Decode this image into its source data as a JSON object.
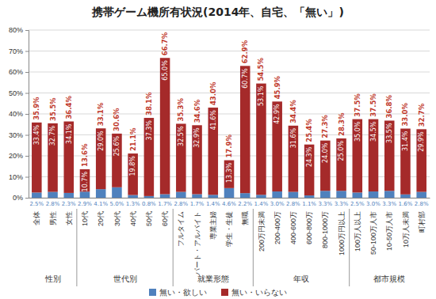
{
  "chart_data": {
    "type": "bar",
    "stacked": true,
    "data_labels": true,
    "grid": true,
    "legend": "bottom",
    "title": "携帯ゲーム機所有状況(2014年、自宅、「無い」)",
    "categories": [
      "全体",
      "男性",
      "女性",
      "10代",
      "20代",
      "30代",
      "40代",
      "50代",
      "60代",
      "フルタイム",
      "パート・アルバイト",
      "専業主婦",
      "学生・生徒",
      "無職",
      "200万円未満",
      "200-400万",
      "400-600万",
      "600-800万",
      "800-1000万",
      "1000万円以上",
      "100万人以上",
      "50-100万人市",
      "10-50万人市",
      "10万人未満",
      "町村部"
    ],
    "groups": [
      {
        "label": "性別",
        "first": 0,
        "last": 2
      },
      {
        "label": "世代別",
        "first": 3,
        "last": 8
      },
      {
        "label": "就業形態",
        "first": 9,
        "last": 13
      },
      {
        "label": "年収",
        "first": 14,
        "last": 19
      },
      {
        "label": "都市規模",
        "first": 20,
        "last": 24
      }
    ],
    "series": [
      {
        "name": "無い・欲しい",
        "color": "#4f81bd",
        "values": [
          2.5,
          2.8,
          2.3,
          2.9,
          4.1,
          5.0,
          1.3,
          0.8,
          1.7,
          2.8,
          1.7,
          1.4,
          4.6,
          2.2,
          1.4,
          3.0,
          2.8,
          1.1,
          3.3,
          3.3,
          2.5,
          3.0,
          3.3,
          1.6,
          2.8
        ],
        "value_labels": [
          "2.5%",
          "2.8%",
          "2.3%",
          "2.9%",
          "4.1%",
          "5.0%",
          "1.3%",
          "0.8%",
          "1.7%",
          "2.8%",
          "1.7%",
          "1.4%",
          "4.6%",
          "2.2%",
          "1.4%",
          "3.0%",
          "2.8%",
          "1.1%",
          "3.3%",
          "3.3%",
          "2.5%",
          "3.0%",
          "3.3%",
          "1.6%",
          "2.8%"
        ]
      },
      {
        "name": "無い・いらない",
        "color": "#a52a2a",
        "values": [
          33.4,
          32.7,
          34.1,
          10.7,
          29.0,
          25.6,
          19.8,
          37.3,
          65.0,
          32.5,
          32.9,
          41.6,
          13.3,
          60.7,
          53.1,
          42.9,
          31.6,
          24.3,
          24.0,
          25.0,
          35.0,
          34.5,
          33.5,
          31.4,
          29.9
        ],
        "value_labels": [
          "33.4%",
          "32.7%",
          "34.1%",
          "10.7%",
          "29.0%",
          "25.6%",
          "19.8%",
          "37.3%",
          "65.0%",
          "32.5%",
          "32.9%",
          "41.6%",
          "13.3%",
          "60.7%",
          "53.1%",
          "42.9%",
          "31.6%",
          "24.3%",
          "24.0%",
          "25.0%",
          "35.0%",
          "34.5%",
          "33.5%",
          "31.4%",
          "29.9%"
        ]
      }
    ],
    "totals": {
      "color": "#c0392b",
      "values": [
        35.9,
        35.5,
        36.4,
        13.6,
        33.1,
        30.6,
        21.1,
        38.1,
        66.7,
        35.3,
        34.6,
        43.0,
        17.9,
        62.9,
        54.5,
        45.9,
        34.4,
        25.4,
        27.3,
        28.3,
        37.5,
        37.5,
        36.8,
        33.0,
        32.7
      ],
      "value_labels": [
        "35.9%",
        "35.5%",
        "36.4%",
        "13.6%",
        "33.1%",
        "30.6%",
        "21.1%",
        "38.1%",
        "66.7%",
        "35.3%",
        "34.6%",
        "43.0%",
        "17.9%",
        "62.9%",
        "54.5%",
        "45.9%",
        "34.4%",
        "25.4%",
        "27.3%",
        "28.3%",
        "37.5%",
        "37.5%",
        "36.8%",
        "33.0%",
        "32.7%"
      ]
    },
    "ylim": [
      0,
      80
    ],
    "yticks": [
      {
        "value": 0,
        "label": "0%"
      },
      {
        "value": 10,
        "label": "10%"
      },
      {
        "value": 20,
        "label": "20%"
      },
      {
        "value": 30,
        "label": "30%"
      },
      {
        "value": 40,
        "label": "40%"
      },
      {
        "value": 50,
        "label": "50%"
      },
      {
        "value": 60,
        "label": "60%"
      },
      {
        "value": 70,
        "label": "70%"
      },
      {
        "value": 80,
        "label": "80%"
      }
    ]
  }
}
